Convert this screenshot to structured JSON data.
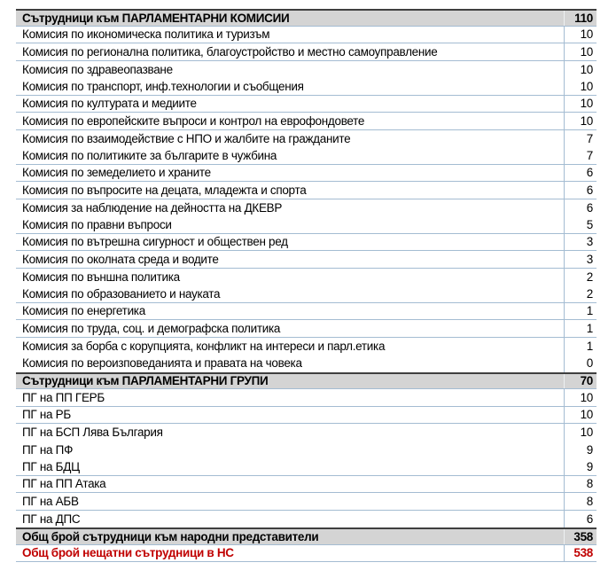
{
  "table": {
    "colors": {
      "accent_red": "#C00000",
      "header_bg": "#D4D4D4",
      "grid_blue": "#A4BCD2",
      "dark_border": "#3F3F3F"
    },
    "rows": [
      {
        "label": "Сътрудници към ПАРЛАМЕНТАРНИ КОМИСИИ",
        "value": "110",
        "style": "section-header",
        "line_below": true
      },
      {
        "label": "Комисия по икономическа политика и туризъм",
        "value": "10",
        "style": "data",
        "line_below": true
      },
      {
        "label": "Комисия по регионална политика, благоустройство и местно самоуправление",
        "value": "10",
        "style": "data",
        "line_below": true
      },
      {
        "label": "Комисия по здравеопазване",
        "value": "10",
        "style": "data",
        "line_below": false
      },
      {
        "label": "Комисия по транспорт, инф.технологии и съобщения",
        "value": "10",
        "style": "data",
        "line_below": true
      },
      {
        "label": "Комисия по културата и медиите",
        "value": "10",
        "style": "data",
        "line_below": true
      },
      {
        "label": "Комисия по европейските въпроси и контрол на еврофондовете",
        "value": "10",
        "style": "data",
        "line_below": true
      },
      {
        "label": "Комисия по взаимодействие с НПО и жалбите на гражданите",
        "value": "7",
        "style": "data",
        "line_below": false
      },
      {
        "label": "Комисия по политиките за българите в чужбина",
        "value": "7",
        "style": "data",
        "line_below": true
      },
      {
        "label": "Комисия по земеделието и храните",
        "value": "6",
        "style": "data",
        "line_below": true
      },
      {
        "label": "Комисия по въпросите на децата, младежта и спорта",
        "value": "6",
        "style": "data",
        "line_below": true
      },
      {
        "label": "Комисия за наблюдение на дейността на ДКЕВР",
        "value": "6",
        "style": "data",
        "line_below": false
      },
      {
        "label": "Комисия по правни въпроси",
        "value": "5",
        "style": "data",
        "line_below": true
      },
      {
        "label": "Комисия по вътрешна сигурност и обществен ред",
        "value": "3",
        "style": "data",
        "line_below": true
      },
      {
        "label": "Комисия по околната среда и водите",
        "value": "3",
        "style": "data",
        "line_below": true
      },
      {
        "label": "Комисия по външна политика",
        "value": "2",
        "style": "data",
        "line_below": false
      },
      {
        "label": "Комисия по образованието и науката",
        "value": "2",
        "style": "data",
        "line_below": true
      },
      {
        "label": "Комисия по енергетика",
        "value": "1",
        "style": "data",
        "line_below": true
      },
      {
        "label": "Комисия по труда, соц. и демографска политика",
        "value": "1",
        "style": "data",
        "line_below": true
      },
      {
        "label": "Комисия за борба с корупцията, конфликт на интереси и парл.етика",
        "value": "1",
        "style": "data",
        "line_below": false
      },
      {
        "label": "Комисия по вероизповеданията и правата на човека",
        "value": "0",
        "style": "data",
        "line_below": false
      },
      {
        "label": "Сътрудници към ПАРЛАМЕНТАРНИ ГРУПИ",
        "value": "70",
        "style": "section-header",
        "line_below": true
      },
      {
        "label": "ПГ на ПП ГЕРБ",
        "value": "10",
        "style": "data",
        "line_below": true
      },
      {
        "label": "ПГ на РБ",
        "value": "10",
        "style": "data",
        "line_below": true
      },
      {
        "label": "ПГ на БСП Лява България",
        "value": "10",
        "style": "data",
        "line_below": false
      },
      {
        "label": "ПГ на ПФ",
        "value": "9",
        "style": "data",
        "line_below": false
      },
      {
        "label": "ПГ на БДЦ",
        "value": "9",
        "style": "data",
        "line_below": true
      },
      {
        "label": "ПГ на ПП Атака",
        "value": "8",
        "style": "data",
        "line_below": true
      },
      {
        "label": "ПГ на АБВ",
        "value": "8",
        "style": "data",
        "line_below": true
      },
      {
        "label": "ПГ на ДПС",
        "value": "6",
        "style": "data",
        "line_below": false
      },
      {
        "label": "Общ брой сътрудници към народни представители",
        "value": "358",
        "style": "section-header",
        "line_below": true
      },
      {
        "label": "Общ брой нещатни сътрудници в НС",
        "value": "538",
        "style": "total-red",
        "line_below": true
      }
    ]
  }
}
